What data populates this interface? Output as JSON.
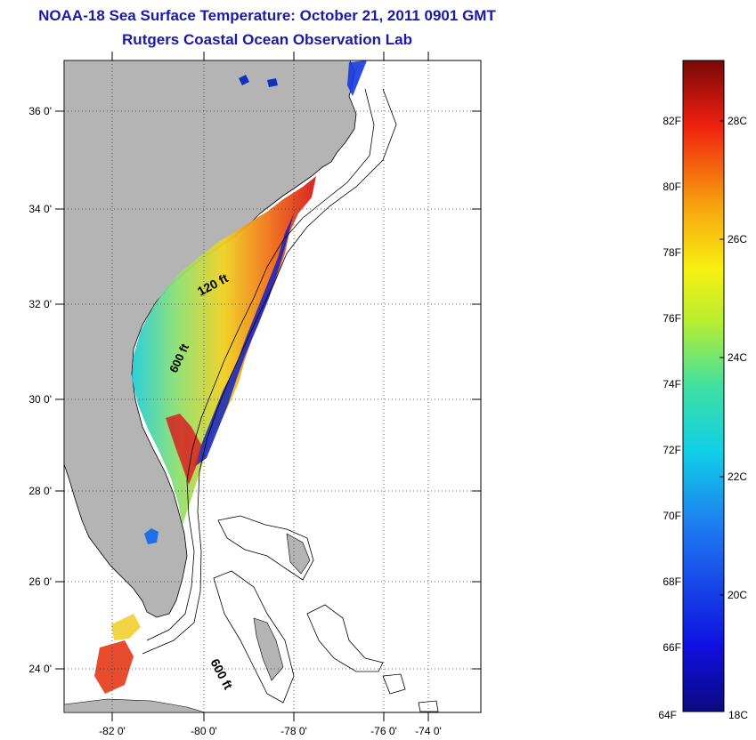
{
  "title": "NOAA-18 Sea Surface Temperature:  October 21, 2011 0901 GMT",
  "subtitle": "Rutgers Coastal Ocean Observation Lab",
  "map": {
    "lat_labels": [
      "36 0'",
      "34 0'",
      "32 0'",
      "30 0'",
      "28 0'",
      "26 0'",
      "24 0'"
    ],
    "lon_labels": [
      "-82 0'",
      "-80 0'",
      "-78 0'",
      "-76 0'",
      "-74 0'"
    ],
    "contour_labels": [
      "120 ft",
      "600 ft",
      "600 ft"
    ],
    "colors": {
      "land": "#b4b4b4",
      "ocean": "#ffffff",
      "grid": "#000000"
    }
  },
  "colorbar": {
    "fahrenheit_labels": [
      "82F",
      "80F",
      "78F",
      "76F",
      "74F",
      "72F",
      "70F",
      "68F",
      "66F",
      "64F"
    ],
    "celsius_labels": [
      "28C",
      "26C",
      "24C",
      "22C",
      "20C",
      "18C"
    ],
    "range_f": [
      64,
      84
    ],
    "range_c": [
      18,
      29
    ]
  }
}
